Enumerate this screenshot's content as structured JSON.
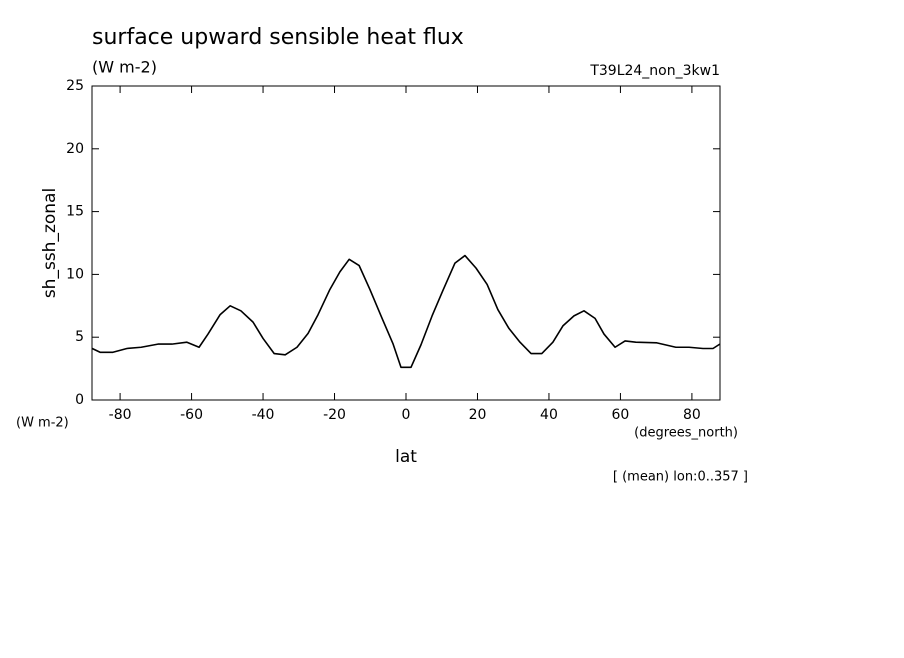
{
  "chart_data": {
    "type": "line",
    "title": "surface upward sensible heat flux",
    "subtitle": "(W m-2)",
    "annotation": "T39L24_non_3kw1",
    "y_axis_label": "sh_ssh_zonal",
    "y_units": "(W m-2)",
    "x_axis_label": "lat",
    "x_units": "(degrees_north)",
    "footnote": "[ (mean) lon:0..357 ]",
    "x": [
      -87.8,
      -85.6,
      -82.0,
      -78.1,
      -74.1,
      -69.4,
      -65.5,
      -61.3,
      -57.9,
      -55.4,
      -52.0,
      -49.2,
      -46.2,
      -42.8,
      -40.0,
      -36.9,
      -33.8,
      -30.5,
      -27.4,
      -24.6,
      -21.3,
      -18.5,
      -15.9,
      -13.1,
      -10.1,
      -6.7,
      -3.6,
      -1.4,
      1.4,
      4.2,
      7.3,
      10.3,
      13.7,
      16.5,
      19.6,
      22.7,
      25.7,
      28.8,
      31.9,
      35.0,
      38.0,
      41.1,
      43.9,
      47.0,
      49.8,
      52.9,
      55.4,
      58.5,
      61.3,
      64.3,
      70.2,
      75.5,
      79.2,
      83.1,
      85.9,
      87.8
    ],
    "series": [
      {
        "name": "sh_ssh_zonal",
        "color": "#000000",
        "values": [
          4.1,
          3.8,
          3.8,
          4.1,
          4.2,
          4.45,
          4.45,
          4.6,
          4.2,
          5.25,
          6.8,
          7.5,
          7.1,
          6.2,
          4.9,
          3.7,
          3.6,
          4.2,
          5.3,
          6.8,
          8.8,
          10.2,
          11.2,
          10.7,
          8.8,
          6.5,
          4.45,
          2.6,
          2.6,
          4.4,
          6.7,
          8.7,
          10.9,
          11.5,
          10.5,
          9.2,
          7.2,
          5.7,
          4.6,
          3.7,
          3.7,
          4.6,
          5.9,
          6.7,
          7.1,
          6.5,
          5.25,
          4.2,
          4.7,
          4.6,
          4.55,
          4.2,
          4.2,
          4.1,
          4.1,
          4.45
        ]
      }
    ],
    "xlim": [
      -87.86,
      87.86
    ],
    "ylim": [
      0,
      25
    ],
    "xticks": [
      -80,
      -60,
      -40,
      -20,
      0,
      20,
      40,
      60,
      80
    ],
    "yticks": [
      0,
      5,
      10,
      15,
      20,
      25
    ],
    "grid": false
  }
}
